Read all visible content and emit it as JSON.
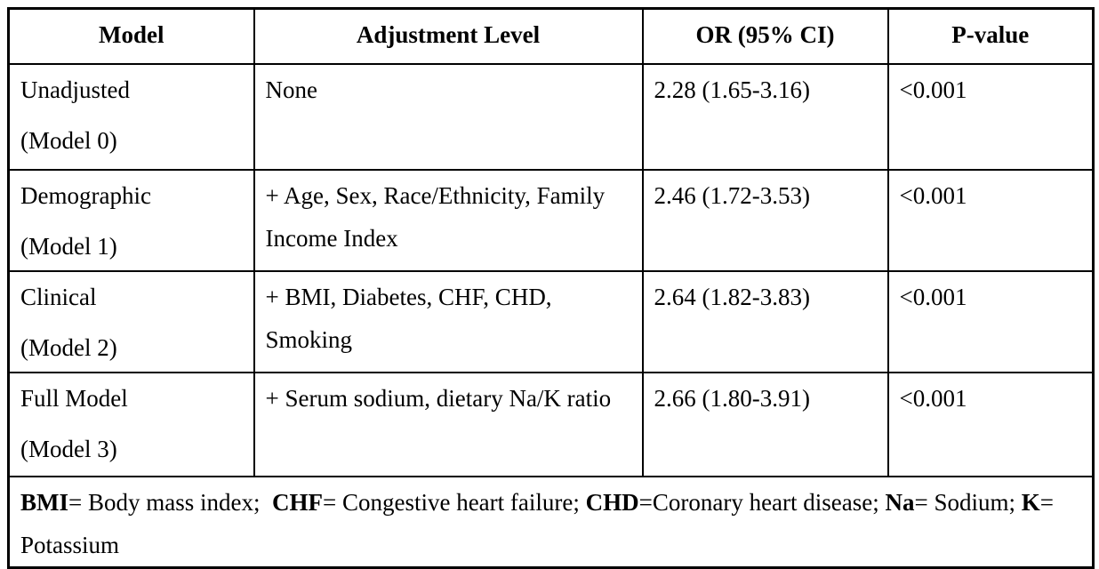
{
  "page": {
    "background_color": "#ffffff",
    "border_color": "#000000",
    "text_color": "#000000"
  },
  "table": {
    "headers": [
      "Model",
      "Adjustment Level",
      "OR (95% CI)",
      "P-value"
    ],
    "rows": [
      {
        "model_line1": "Unadjusted",
        "model_line2": "(Model 0)",
        "adjustment": "None",
        "or_ci": "2.28 (1.65-3.16)",
        "p_value": "<0.001"
      },
      {
        "model_line1": "Demographic",
        "model_line2": "(Model 1)",
        "adjustment": "+ Age, Sex, Race/Ethnicity, Family Income Index",
        "or_ci": "2.46 (1.72-3.53)",
        "p_value": "<0.001"
      },
      {
        "model_line1": "Clinical",
        "model_line2": "(Model 2)",
        "adjustment": "+ BMI, Diabetes, CHF, CHD, Smoking",
        "or_ci": "2.64 (1.82-3.83)",
        "p_value": "<0.001"
      },
      {
        "model_line1": "Full Model",
        "model_line2": "(Model 3)",
        "adjustment": "+ Serum sodium, dietary Na/K ratio",
        "or_ci": "2.66 (1.80-3.91)",
        "p_value": "<0.001"
      }
    ],
    "footnote_segments": [
      {
        "text": "BMI",
        "bold": true
      },
      {
        "text": "= Body mass index;  ",
        "bold": false
      },
      {
        "text": "CHF",
        "bold": true
      },
      {
        "text": "= Congestive heart failure; ",
        "bold": false
      },
      {
        "text": "CHD",
        "bold": true
      },
      {
        "text": "=Coronary heart disease; ",
        "bold": false
      },
      {
        "text": "Na",
        "bold": true
      },
      {
        "text": "= Sodium; ",
        "bold": false
      },
      {
        "text": "K",
        "bold": true
      },
      {
        "text": "= Potassium",
        "bold": false
      }
    ]
  }
}
